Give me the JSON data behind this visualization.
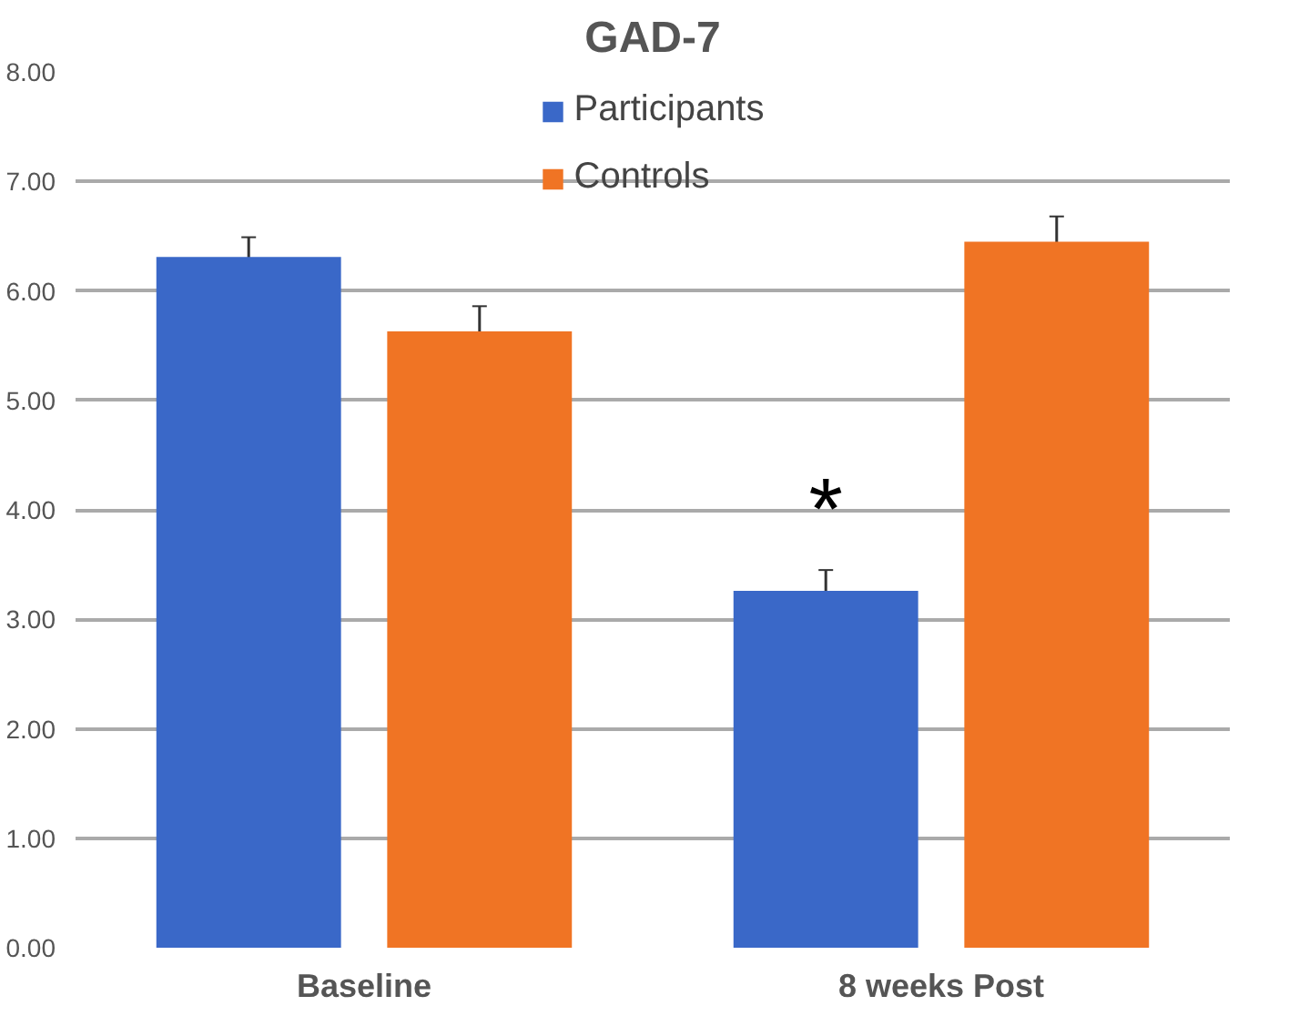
{
  "chart_data": {
    "type": "bar",
    "title": "GAD-7",
    "categories": [
      "Baseline",
      "8 weeks Post"
    ],
    "series": [
      {
        "name": "Participants",
        "color": "#3a68c8",
        "values": [
          6.31,
          3.26
        ],
        "errors": [
          0.18,
          0.19
        ]
      },
      {
        "name": "Controls",
        "color": "#f07424",
        "values": [
          5.63,
          6.45
        ],
        "errors": [
          0.23,
          0.23
        ]
      }
    ],
    "ylim": [
      0,
      8
    ],
    "yticks": [
      {
        "value": 0,
        "label": "0.00"
      },
      {
        "value": 1,
        "label": "1.00"
      },
      {
        "value": 2,
        "label": "2.00"
      },
      {
        "value": 3,
        "label": "3.00"
      },
      {
        "value": 4,
        "label": "4.00"
      },
      {
        "value": 5,
        "label": "5.00"
      },
      {
        "value": 6,
        "label": "6.00"
      },
      {
        "value": 7,
        "label": "7.00"
      },
      {
        "value": 8,
        "label": "8.00"
      }
    ],
    "grid": "y",
    "legend": "top",
    "annotations": [
      "*"
    ]
  }
}
